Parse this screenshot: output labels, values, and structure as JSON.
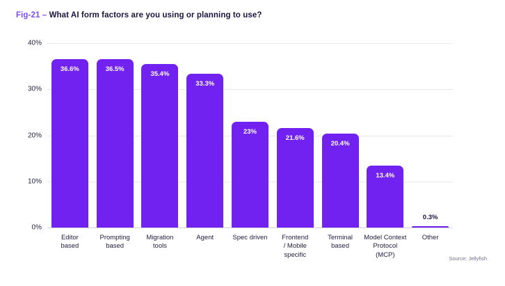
{
  "figure": {
    "tag": "Fig-21 –",
    "title": "What AI form factors are you using or planning to use?"
  },
  "source": "Source: Jellyfish",
  "colors": {
    "bar": "#7122f0",
    "title_accent": "#7c4cf0",
    "text_dark": "#1a1440",
    "gridline": "#e7e7ec",
    "baseline": "#cfcfd8",
    "value_label_inside": "#ffffff",
    "source_text": "#70708c"
  },
  "chart_data": {
    "type": "bar",
    "title": "Fig-21 – What AI form factors are you using or planning to use?",
    "categories": [
      "Editor based",
      "Prompting based",
      "Migration tools",
      "Agent",
      "Spec driven",
      "Frontend / Mobile specific",
      "Terminal based",
      "Model Context Protocol (MCP)",
      "Other"
    ],
    "categories_display": [
      "Editor\nbased",
      "Prompting\nbased",
      "Migration\ntools",
      "Agent",
      "Spec driven",
      "Frontend\n/ Mobile\nspecific",
      "Terminal\nbased",
      "Model Context\nProtocol\n(MCP)",
      "Other"
    ],
    "values": [
      36.6,
      36.5,
      35.4,
      33.3,
      23,
      21.6,
      20.4,
      13.4,
      0.3
    ],
    "value_labels": [
      "36.6%",
      "36.5%",
      "35.4%",
      "33.3%",
      "23%",
      "21.6%",
      "20.4%",
      "13.4%",
      "0.3%"
    ],
    "xlabel": "",
    "ylabel": "",
    "ylim": [
      0,
      40
    ],
    "ytick_values": [
      0,
      10,
      20,
      30,
      40
    ],
    "ytick_labels": [
      "0%",
      "10%",
      "20%",
      "30%",
      "40%"
    ],
    "grid": true,
    "legend": false,
    "annotations": [
      "Source: Jellyfish"
    ]
  }
}
